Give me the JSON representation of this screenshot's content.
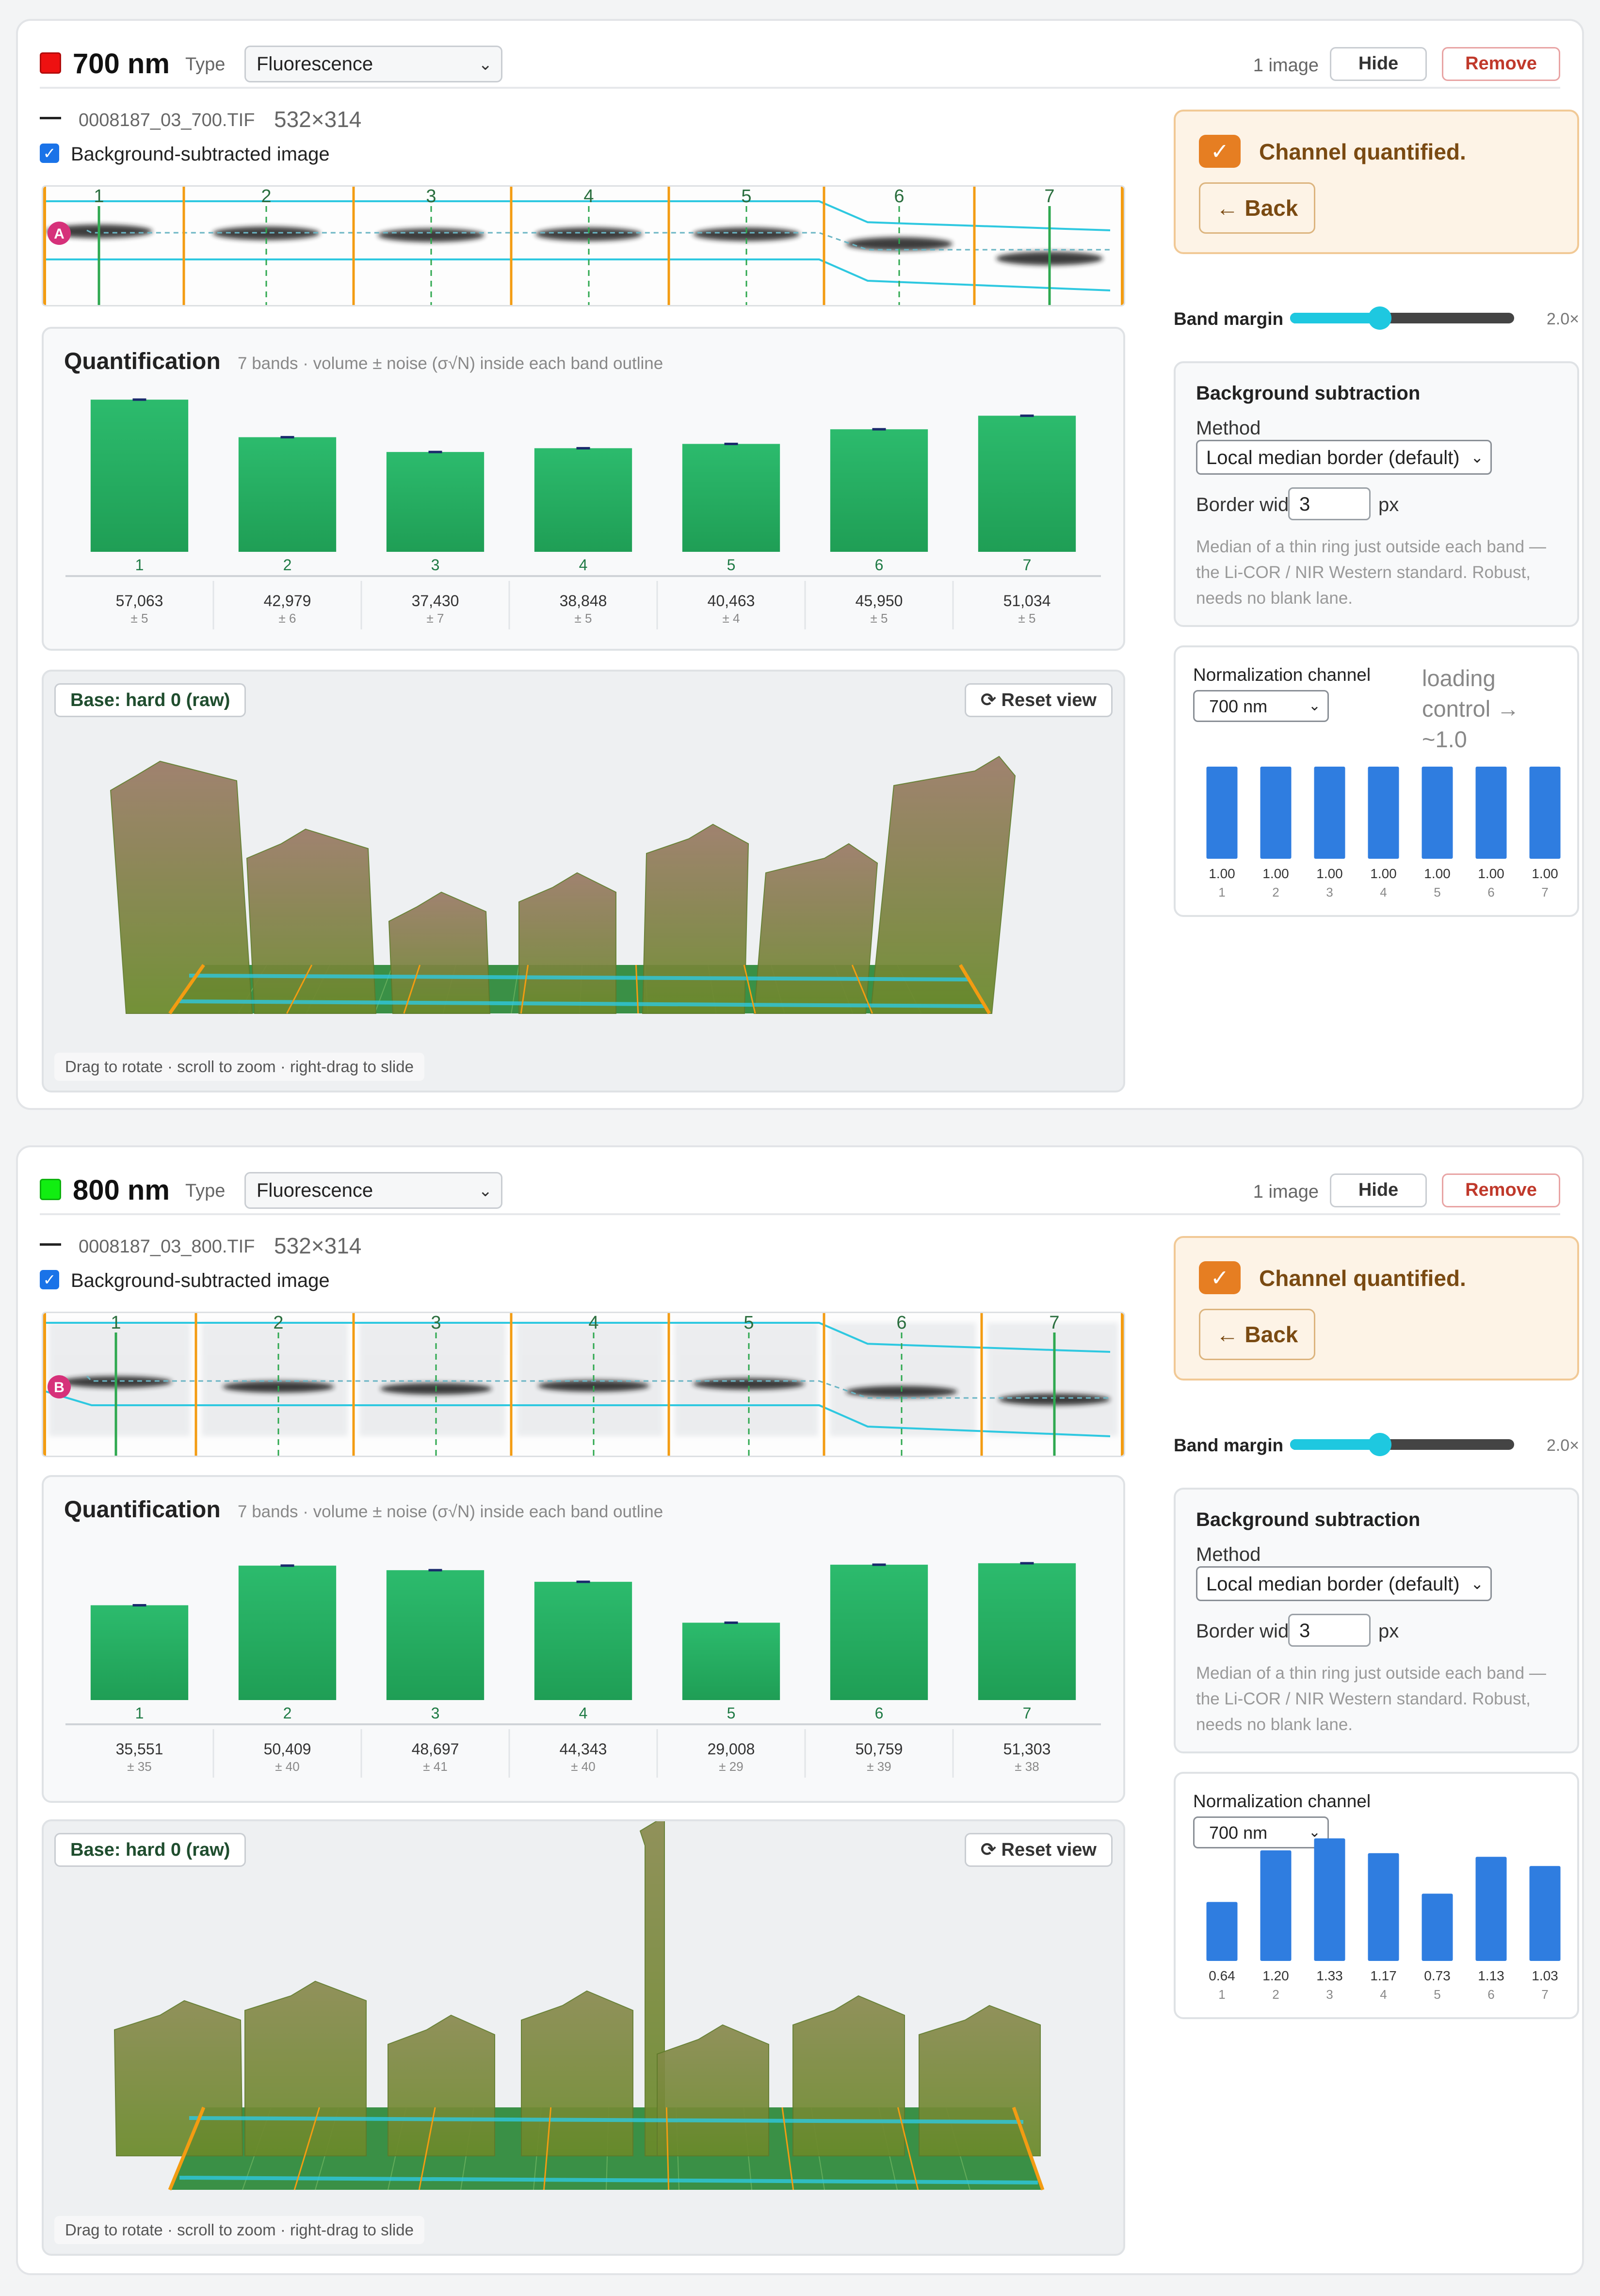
{
  "channels": [
    {
      "id": "700",
      "title": "700 nm",
      "swatch_color": "#ee1111",
      "type_label": "Type",
      "type_value": "Fluorescence",
      "image_count": "1 image",
      "hide_label": "Hide",
      "remove_label": "Remove",
      "file_name": "0008187_03_700.TIF",
      "file_dims": "532×314",
      "bg_subtracted_label": "Background-subtracted image",
      "marker_label": "A",
      "lanes": [
        "1",
        "2",
        "3",
        "4",
        "5",
        "6",
        "7"
      ],
      "quant_title": "Quantification",
      "quant_subtitle": "7 bands · volume ± noise (σ√N) inside each band outline",
      "quant_values": [
        57063,
        42979,
        37430,
        38848,
        40463,
        45950,
        51034
      ],
      "quant_labels": [
        "57,063",
        "42,979",
        "37,430",
        "38,848",
        "40,463",
        "45,950",
        "51,034"
      ],
      "quant_noise": [
        "± 5",
        "± 6",
        "± 7",
        "± 5",
        "± 4",
        "± 5",
        "± 5"
      ],
      "base_label": "Base: hard 0 (raw)",
      "reset_label": "Reset view",
      "viewer_hint": "Drag to rotate · scroll to zoom · right-drag to slide",
      "quantified_text": "Channel quantified.",
      "back_label": "← Back",
      "band_margin_label": "Band margin",
      "band_margin_value": "2.0×",
      "band_margin_fraction": 0.4,
      "bg_title": "Background subtraction",
      "method_label": "Method",
      "method_value": "Local median border (default)",
      "border_width_label": "Border width",
      "border_width_value": "3",
      "border_width_unit": "px",
      "bg_note": "Median of a thin ring just outside each band — the Li-COR / NIR Western standard. Robust, needs no blank lane.",
      "norm_title": "Normalization channel",
      "norm_value": "700 nm",
      "norm_note": "loading control → ~1.0",
      "norm_values": [
        1.0,
        1.0,
        1.0,
        1.0,
        1.0,
        1.0,
        1.0
      ],
      "norm_labels": [
        "1.00",
        "1.00",
        "1.00",
        "1.00",
        "1.00",
        "1.00",
        "1.00"
      ]
    },
    {
      "id": "800",
      "title": "800 nm",
      "swatch_color": "#11ee11",
      "type_label": "Type",
      "type_value": "Fluorescence",
      "image_count": "1 image",
      "hide_label": "Hide",
      "remove_label": "Remove",
      "file_name": "0008187_03_800.TIF",
      "file_dims": "532×314",
      "bg_subtracted_label": "Background-subtracted image",
      "marker_label": "B",
      "lanes": [
        "1",
        "2",
        "3",
        "4",
        "5",
        "6",
        "7"
      ],
      "quant_title": "Quantification",
      "quant_subtitle": "7 bands · volume ± noise (σ√N) inside each band outline",
      "quant_values": [
        35551,
        50409,
        48697,
        44343,
        29008,
        50759,
        51303
      ],
      "quant_labels": [
        "35,551",
        "50,409",
        "48,697",
        "44,343",
        "29,008",
        "50,759",
        "51,303"
      ],
      "quant_noise": [
        "± 35",
        "± 40",
        "± 41",
        "± 40",
        "± 29",
        "± 39",
        "± 38"
      ],
      "base_label": "Base: hard 0 (raw)",
      "reset_label": "Reset view",
      "viewer_hint": "Drag to rotate · scroll to zoom · right-drag to slide",
      "quantified_text": "Channel quantified.",
      "back_label": "← Back",
      "band_margin_label": "Band margin",
      "band_margin_value": "2.0×",
      "band_margin_fraction": 0.4,
      "bg_title": "Background subtraction",
      "method_label": "Method",
      "method_value": "Local median border (default)",
      "border_width_label": "Border width",
      "border_width_value": "3",
      "border_width_unit": "px",
      "bg_note": "Median of a thin ring just outside each band — the Li-COR / NIR Western standard. Robust, needs no blank lane.",
      "norm_title": "Normalization channel",
      "norm_value": "700 nm",
      "norm_note": "",
      "norm_values": [
        0.64,
        1.2,
        1.33,
        1.17,
        0.73,
        1.13,
        1.03
      ],
      "norm_labels": [
        "0.64",
        "1.20",
        "1.33",
        "1.17",
        "0.73",
        "1.13",
        "1.03"
      ]
    }
  ],
  "icons": {
    "select_chevron": "chevron-down-icon",
    "checkbox": "check-icon",
    "reset": "refresh-icon",
    "quantified": "check-icon"
  },
  "colors": {
    "bar_green": "#27ae60",
    "norm_blue": "#2f7de0",
    "lane_orange": "#f39c12",
    "trace_cyan": "#2ec8e0",
    "quantified_orange": "#e67e22"
  }
}
